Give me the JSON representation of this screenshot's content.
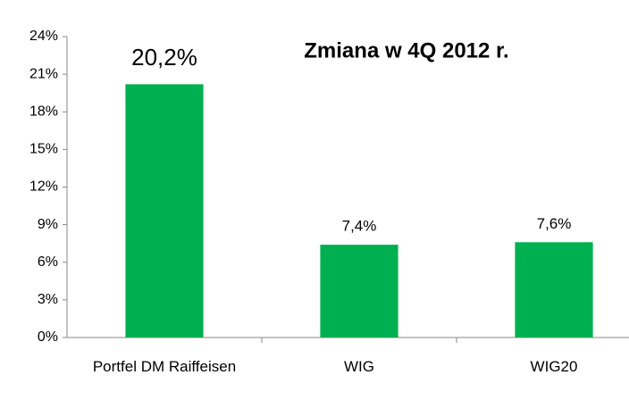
{
  "chart_data": {
    "type": "bar",
    "title": "Zmiana w 4Q 2012 r.",
    "categories": [
      "Portfel DM Raiffeisen",
      "WIG",
      "WIG20"
    ],
    "values": [
      20.2,
      7.4,
      7.6
    ],
    "value_labels": [
      "20,2%",
      "7,4%",
      "7,6%"
    ],
    "color": "#00b050",
    "ylim": [
      0,
      24
    ],
    "yticks": [
      {
        "value": 0,
        "label": "0%"
      },
      {
        "value": 3,
        "label": "3%"
      },
      {
        "value": 6,
        "label": "6%"
      },
      {
        "value": 9,
        "label": "9%"
      },
      {
        "value": 12,
        "label": "12%"
      },
      {
        "value": 15,
        "label": "15%"
      },
      {
        "value": 18,
        "label": "18%"
      },
      {
        "value": 21,
        "label": "21%"
      },
      {
        "value": 24,
        "label": "24%"
      }
    ],
    "grid": false
  }
}
